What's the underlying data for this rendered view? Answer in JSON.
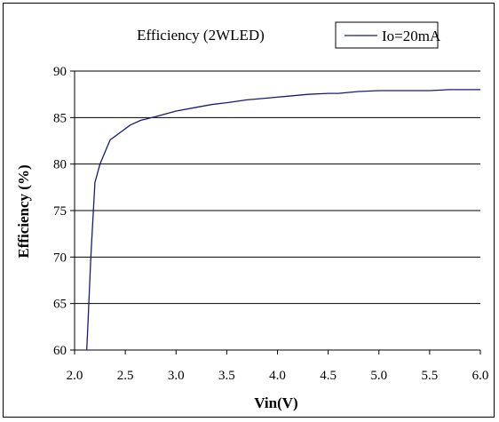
{
  "chart_data": {
    "type": "line",
    "title": "Efficiency (2WLED)",
    "xlabel": "Vin(V)",
    "ylabel": "Efficiency (%)",
    "xlim": [
      2.0,
      6.0
    ],
    "ylim": [
      60,
      90
    ],
    "x_ticks": [
      "2.0",
      "2.5",
      "3.0",
      "3.5",
      "4.0",
      "4.5",
      "5.0",
      "5.5",
      "6.0"
    ],
    "y_ticks": [
      "60",
      "65",
      "70",
      "75",
      "80",
      "85",
      "90"
    ],
    "grid": "horizontal",
    "legend": "top-right",
    "series": [
      {
        "name": "Io=20mA",
        "color": "#1a1a7a",
        "x": [
          2.12,
          2.13,
          2.16,
          2.2,
          2.25,
          2.35,
          2.45,
          2.55,
          2.65,
          2.8,
          3.0,
          3.2,
          3.35,
          3.5,
          3.7,
          3.9,
          4.1,
          4.3,
          4.5,
          4.6,
          4.8,
          5.0,
          5.2,
          5.5,
          5.7,
          6.0
        ],
        "y": [
          60.0,
          62.5,
          70.0,
          78.0,
          80.0,
          82.6,
          83.4,
          84.2,
          84.7,
          85.1,
          85.7,
          86.1,
          86.4,
          86.6,
          86.9,
          87.1,
          87.3,
          87.5,
          87.6,
          87.6,
          87.8,
          87.9,
          87.9,
          87.9,
          88.0,
          88.0
        ]
      }
    ]
  }
}
